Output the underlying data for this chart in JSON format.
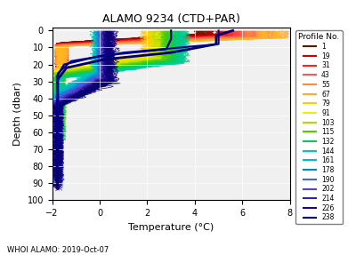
{
  "title": "ALAMO 9234 (CTD+PAR)",
  "xlabel": "Temperature (°C)",
  "ylabel": "Depth (dbar)",
  "footnote": "WHOI ALAMO: 2019-Oct-07",
  "xlim": [
    -2,
    8
  ],
  "ylim": [
    100,
    -2
  ],
  "xticks": [
    -2,
    0,
    2,
    4,
    6,
    8
  ],
  "yticks": [
    0,
    10,
    20,
    30,
    40,
    50,
    60,
    70,
    80,
    90,
    100
  ],
  "legend_title": "Profile No.",
  "profile_numbers": [
    1,
    19,
    31,
    43,
    55,
    67,
    79,
    91,
    103,
    115,
    132,
    144,
    161,
    178,
    190,
    202,
    214,
    226,
    238
  ],
  "profile_colors": [
    "#5a1a00",
    "#cc0000",
    "#ff2222",
    "#ff5555",
    "#ff8844",
    "#ffaa33",
    "#ffcc00",
    "#eeee00",
    "#aadd00",
    "#55cc00",
    "#00cc55",
    "#00ccaa",
    "#00bbcc",
    "#0088cc",
    "#4466ee",
    "#5544cc",
    "#3322aa",
    "#220088",
    "#00006b"
  ],
  "background_color": "#f0f0f0"
}
